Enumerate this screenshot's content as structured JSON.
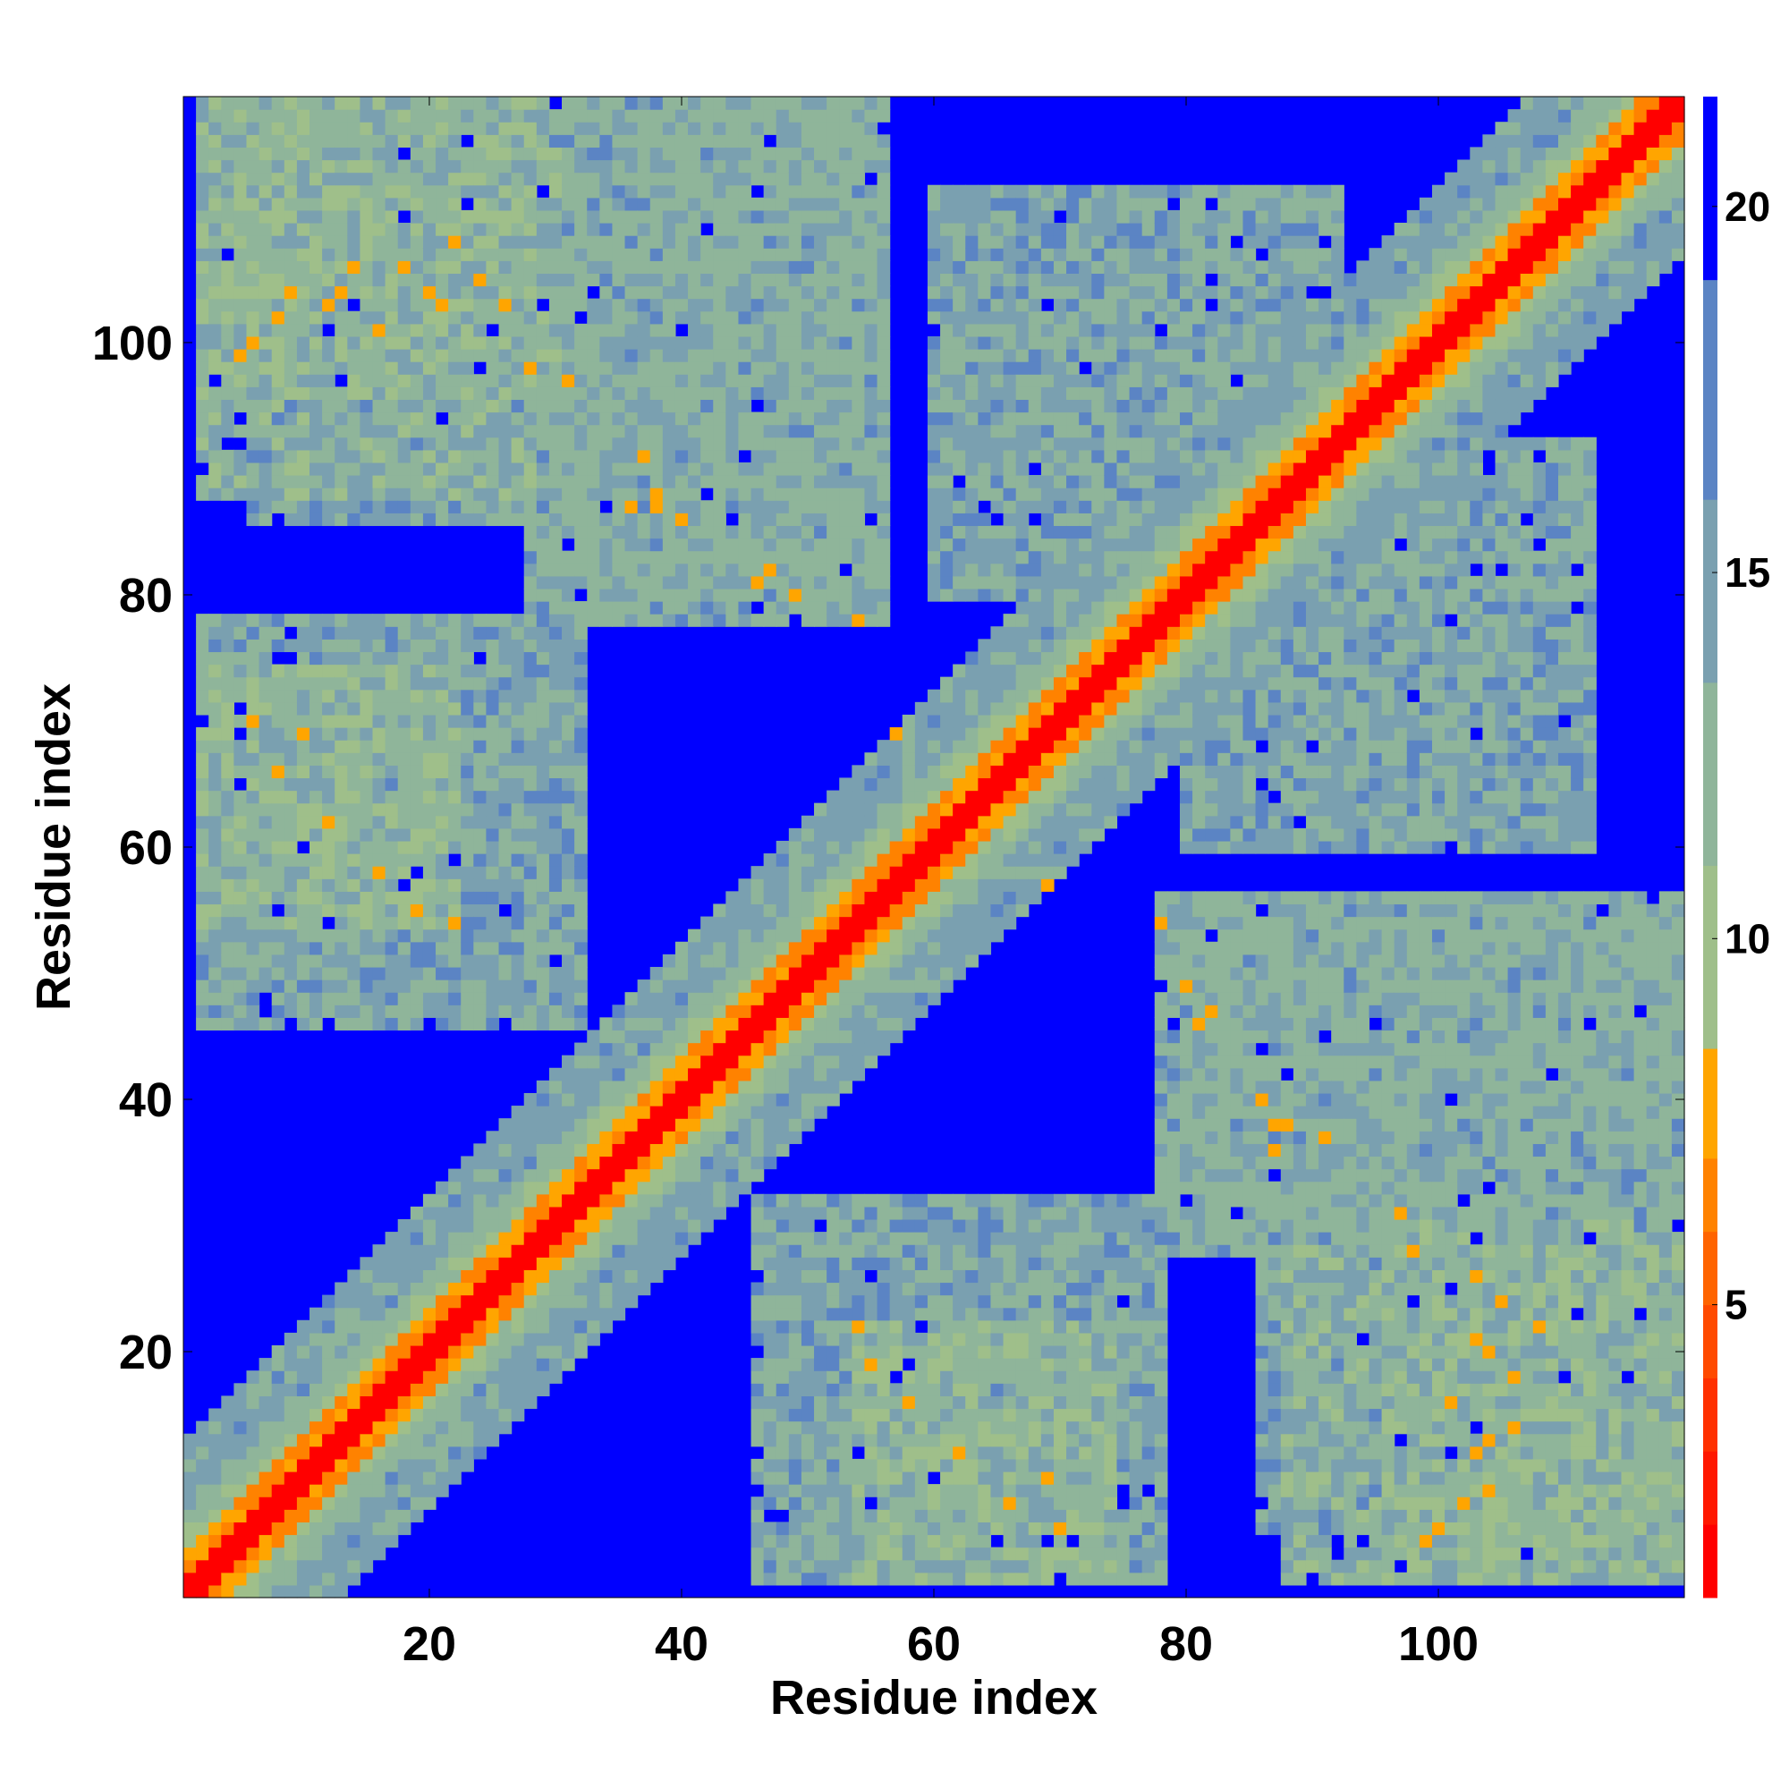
{
  "chart_data": {
    "type": "heatmap",
    "title": "",
    "xlabel": "Residue index",
    "ylabel": "Residue index",
    "n_residues": 119,
    "x_ticks": [
      20,
      40,
      60,
      80,
      100
    ],
    "y_ticks": [
      20,
      40,
      60,
      80,
      100
    ],
    "xlim": [
      0.5,
      119.5
    ],
    "ylim": [
      0.5,
      119.5
    ],
    "colorbar": {
      "range": [
        1,
        21.5
      ],
      "ticks": [
        5,
        10,
        15,
        20
      ],
      "levels": [
        {
          "upto": 2,
          "color": "#ff0000"
        },
        {
          "upto": 3,
          "color": "#ff1800"
        },
        {
          "upto": 4,
          "color": "#ff3000"
        },
        {
          "upto": 5,
          "color": "#ff4a00"
        },
        {
          "upto": 6,
          "color": "#ff6400"
        },
        {
          "upto": 7,
          "color": "#ff8200"
        },
        {
          "upto": 8.5,
          "color": "#ffa500"
        },
        {
          "upto": 11,
          "color": "#9fbf8a"
        },
        {
          "upto": 13.5,
          "color": "#8fb59a"
        },
        {
          "upto": 16,
          "color": "#7aa0b0"
        },
        {
          "upto": 19,
          "color": "#5b84c4"
        },
        {
          "upto": 21.5,
          "color": "#0000ff"
        }
      ]
    },
    "diagonal_band": {
      "red_width": 1.5,
      "orange_width": 3.0,
      "green_width": 6.0
    },
    "domains": [
      {
        "x": [
          2,
          28
        ],
        "y": [
          88,
          119
        ],
        "value": 13.5
      },
      {
        "x": [
          2,
          22
        ],
        "y": [
          54,
          74
        ],
        "value": 13.5
      },
      {
        "x": [
          96,
          119
        ],
        "y": [
          2,
          30
        ],
        "value": 13.5
      },
      {
        "x": [
          54,
          74
        ],
        "y": [
          2,
          22
        ],
        "value": 13.5
      },
      {
        "x": [
          28,
          56
        ],
        "y": [
          78,
          119
        ],
        "value": 14.5
      },
      {
        "x": [
          78,
          119
        ],
        "y": [
          28,
          56
        ],
        "value": 14.5
      },
      {
        "x": [
          46,
          78
        ],
        "y": [
          2,
          32
        ],
        "value": 15.5
      },
      {
        "x": [
          2,
          32
        ],
        "y": [
          46,
          78
        ],
        "value": 15.5
      },
      {
        "x": [
          80,
          112
        ],
        "y": [
          60,
          92
        ],
        "value": 15.5
      },
      {
        "x": [
          60,
          92
        ],
        "y": [
          80,
          112
        ],
        "value": 15.5
      },
      {
        "x": [
          86,
          119
        ],
        "y": [
          6,
          34
        ],
        "value": 16.0
      },
      {
        "x": [
          6,
          34
        ],
        "y": [
          86,
          119
        ],
        "value": 16.0
      }
    ],
    "orange_contacts": [
      [
        5,
        99
      ],
      [
        9,
        104
      ],
      [
        12,
        103
      ],
      [
        14,
        106
      ],
      [
        16,
        101
      ],
      [
        20,
        104
      ],
      [
        22,
        108
      ],
      [
        24,
        105
      ],
      [
        26,
        103
      ],
      [
        28,
        98
      ],
      [
        31,
        97
      ],
      [
        6,
        70
      ],
      [
        8,
        66
      ],
      [
        10,
        69
      ],
      [
        12,
        62
      ],
      [
        16,
        58
      ],
      [
        19,
        55
      ],
      [
        22,
        54
      ],
      [
        36,
        87
      ],
      [
        38,
        88
      ],
      [
        40,
        86
      ],
      [
        46,
        81
      ],
      [
        49,
        80
      ],
      [
        54,
        78
      ],
      [
        57,
        69
      ],
      [
        99,
        5
      ],
      [
        104,
        9
      ],
      [
        103,
        12
      ],
      [
        106,
        14
      ],
      [
        101,
        16
      ],
      [
        104,
        20
      ],
      [
        108,
        22
      ],
      [
        105,
        24
      ],
      [
        103,
        26
      ],
      [
        98,
        28
      ],
      [
        97,
        31
      ],
      [
        70,
        6
      ],
      [
        66,
        8
      ],
      [
        69,
        10
      ],
      [
        62,
        12
      ],
      [
        58,
        16
      ],
      [
        55,
        19
      ],
      [
        54,
        22
      ],
      [
        87,
        36
      ],
      [
        88,
        38
      ],
      [
        86,
        40
      ],
      [
        81,
        46
      ],
      [
        80,
        49
      ],
      [
        78,
        54
      ],
      [
        69,
        57
      ],
      [
        87,
        38
      ],
      [
        38,
        87
      ],
      [
        82,
        47
      ],
      [
        47,
        82
      ],
      [
        91,
        37
      ],
      [
        37,
        91
      ],
      [
        103,
        21
      ],
      [
        106,
        18
      ],
      [
        104,
        13
      ],
      [
        102,
        8
      ],
      [
        100,
        6
      ],
      [
        21,
        103
      ],
      [
        18,
        106
      ],
      [
        13,
        104
      ],
      [
        8,
        102
      ],
      [
        6,
        100
      ]
    ]
  }
}
